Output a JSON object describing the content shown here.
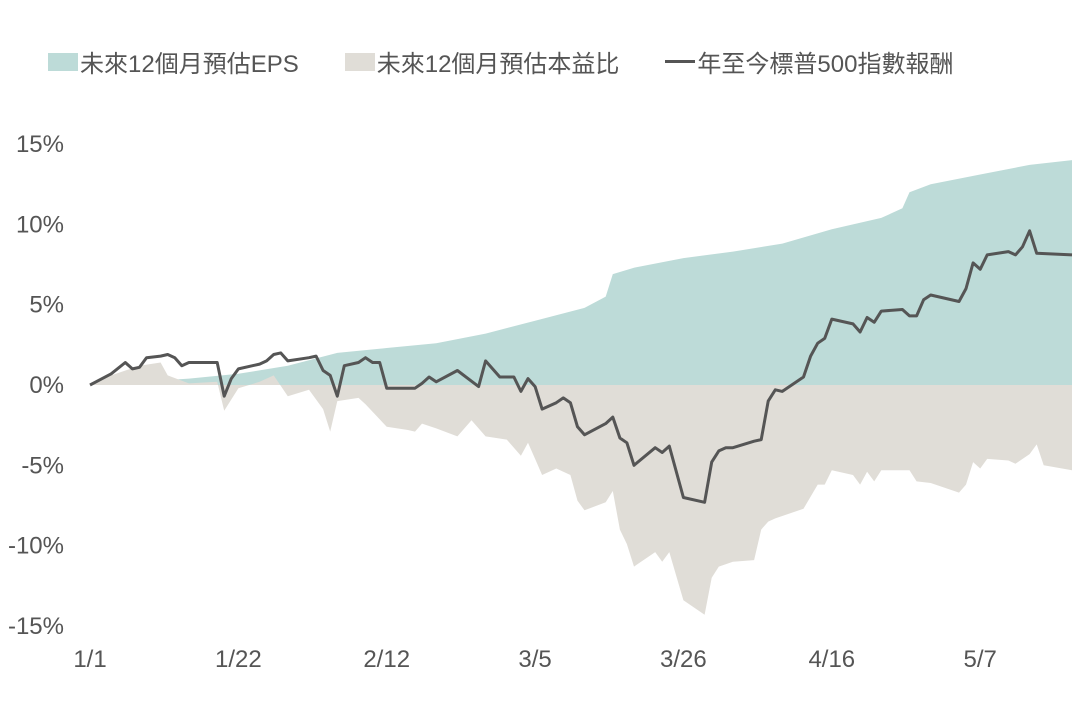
{
  "chart_data": {
    "type": "area",
    "title": "",
    "xlabel": "",
    "ylabel": "",
    "ylim": [
      -15,
      15
    ],
    "y_ticks": [
      15,
      10,
      5,
      0,
      -5,
      -10,
      -15
    ],
    "y_tick_labels": [
      "15%",
      "10%",
      "5%",
      "0%",
      "-5%",
      "-10%",
      "-15%"
    ],
    "x_ticks": [
      "1/1",
      "1/22",
      "2/12",
      "3/5",
      "3/26",
      "4/16",
      "5/7"
    ],
    "x_range": [
      "1/1",
      "5/20"
    ],
    "grid": false,
    "legend_position": "top",
    "colors": {
      "eps": "#bddbd8",
      "pe": "#e0ddd7",
      "sp500": "#555555"
    },
    "series": [
      {
        "name": "未來12個月預估EPS",
        "kind": "area",
        "points": [
          [
            "1/1",
            0
          ],
          [
            "1/8",
            0.2
          ],
          [
            "1/15",
            0.4
          ],
          [
            "1/22",
            0.7
          ],
          [
            "1/29",
            1.2
          ],
          [
            "2/5",
            2.0
          ],
          [
            "2/12",
            2.3
          ],
          [
            "2/19",
            2.6
          ],
          [
            "2/26",
            3.2
          ],
          [
            "3/5",
            4.0
          ],
          [
            "3/12",
            4.8
          ],
          [
            "3/15",
            5.5
          ],
          [
            "3/16",
            6.9
          ],
          [
            "3/19",
            7.3
          ],
          [
            "3/26",
            7.9
          ],
          [
            "4/2",
            8.3
          ],
          [
            "4/9",
            8.8
          ],
          [
            "4/16",
            9.7
          ],
          [
            "4/23",
            10.4
          ],
          [
            "4/26",
            11.0
          ],
          [
            "4/27",
            12.0
          ],
          [
            "4/30",
            12.5
          ],
          [
            "5/7",
            13.1
          ],
          [
            "5/14",
            13.7
          ],
          [
            "5/20",
            14.0
          ]
        ]
      },
      {
        "name": "未來12個月預估本益比",
        "kind": "area",
        "points": [
          [
            "1/1",
            0
          ],
          [
            "1/4",
            0.6
          ],
          [
            "1/8",
            1.2
          ],
          [
            "1/11",
            1.4
          ],
          [
            "1/12",
            0.6
          ],
          [
            "1/15",
            0.1
          ],
          [
            "1/19",
            0.2
          ],
          [
            "1/20",
            -1.6
          ],
          [
            "1/22",
            -0.2
          ],
          [
            "1/25",
            0.2
          ],
          [
            "1/27",
            0.6
          ],
          [
            "1/29",
            -0.7
          ],
          [
            "2/1",
            -0.3
          ],
          [
            "2/3",
            -1.5
          ],
          [
            "2/4",
            -2.9
          ],
          [
            "2/5",
            -1.0
          ],
          [
            "2/8",
            -0.8
          ],
          [
            "2/9",
            -1.2
          ],
          [
            "2/12",
            -2.6
          ],
          [
            "2/15",
            -2.8
          ],
          [
            "2/16",
            -2.9
          ],
          [
            "2/17",
            -2.4
          ],
          [
            "2/19",
            -2.7
          ],
          [
            "2/22",
            -3.2
          ],
          [
            "2/24",
            -2.2
          ],
          [
            "2/26",
            -3.2
          ],
          [
            "3/1",
            -3.4
          ],
          [
            "3/3",
            -4.4
          ],
          [
            "3/4",
            -3.6
          ],
          [
            "3/5",
            -4.6
          ],
          [
            "3/6",
            -5.6
          ],
          [
            "3/8",
            -5.2
          ],
          [
            "3/10",
            -5.6
          ],
          [
            "3/11",
            -7.2
          ],
          [
            "3/12",
            -7.8
          ],
          [
            "3/15",
            -7.3
          ],
          [
            "3/16",
            -6.6
          ],
          [
            "3/17",
            -9.0
          ],
          [
            "3/18",
            -9.9
          ],
          [
            "3/19",
            -11.3
          ],
          [
            "3/22",
            -10.4
          ],
          [
            "3/23",
            -11.0
          ],
          [
            "3/24",
            -10.4
          ],
          [
            "3/26",
            -13.4
          ],
          [
            "3/29",
            -14.3
          ],
          [
            "3/30",
            -12.0
          ],
          [
            "3/31",
            -11.3
          ],
          [
            "4/2",
            -11.0
          ],
          [
            "4/5",
            -10.9
          ],
          [
            "4/6",
            -9.0
          ],
          [
            "4/7",
            -8.5
          ],
          [
            "4/8",
            -8.3
          ],
          [
            "4/12",
            -7.7
          ],
          [
            "4/14",
            -6.2
          ],
          [
            "4/15",
            -6.2
          ],
          [
            "4/16",
            -5.3
          ],
          [
            "4/19",
            -5.6
          ],
          [
            "4/20",
            -6.2
          ],
          [
            "4/21",
            -5.4
          ],
          [
            "4/22",
            -6.0
          ],
          [
            "4/23",
            -5.3
          ],
          [
            "4/27",
            -5.3
          ],
          [
            "4/28",
            -6.0
          ],
          [
            "4/30",
            -6.1
          ],
          [
            "5/4",
            -6.7
          ],
          [
            "5/5",
            -6.2
          ],
          [
            "5/6",
            -4.8
          ],
          [
            "5/7",
            -5.2
          ],
          [
            "5/8",
            -4.6
          ],
          [
            "5/11",
            -4.7
          ],
          [
            "5/12",
            -4.9
          ],
          [
            "5/14",
            -4.3
          ],
          [
            "5/15",
            -3.7
          ],
          [
            "5/16",
            -5.0
          ],
          [
            "5/20",
            -5.3
          ]
        ]
      },
      {
        "name": "年至今標普500指數報酬",
        "kind": "line",
        "points": [
          [
            "1/1",
            0
          ],
          [
            "1/4",
            0.7
          ],
          [
            "1/6",
            1.4
          ],
          [
            "1/7",
            1.0
          ],
          [
            "1/8",
            1.1
          ],
          [
            "1/9",
            1.7
          ],
          [
            "1/11",
            1.8
          ],
          [
            "1/12",
            1.9
          ],
          [
            "1/13",
            1.7
          ],
          [
            "1/14",
            1.2
          ],
          [
            "1/15",
            1.4
          ],
          [
            "1/18",
            1.4
          ],
          [
            "1/19",
            1.4
          ],
          [
            "1/20",
            -0.7
          ],
          [
            "1/21",
            0.4
          ],
          [
            "1/22",
            1.0
          ],
          [
            "1/25",
            1.3
          ],
          [
            "1/26",
            1.5
          ],
          [
            "1/27",
            1.9
          ],
          [
            "1/28",
            2.0
          ],
          [
            "1/29",
            1.5
          ],
          [
            "2/1",
            1.7
          ],
          [
            "2/2",
            1.8
          ],
          [
            "2/3",
            0.9
          ],
          [
            "2/4",
            0.6
          ],
          [
            "2/5",
            -0.7
          ],
          [
            "2/6",
            1.2
          ],
          [
            "2/8",
            1.4
          ],
          [
            "2/9",
            1.7
          ],
          [
            "2/10",
            1.4
          ],
          [
            "2/11",
            1.4
          ],
          [
            "2/12",
            -0.2
          ],
          [
            "2/15",
            -0.2
          ],
          [
            "2/16",
            -0.2
          ],
          [
            "2/17",
            0.1
          ],
          [
            "2/18",
            0.5
          ],
          [
            "2/19",
            0.2
          ],
          [
            "2/22",
            0.9
          ],
          [
            "2/25",
            -0.1
          ],
          [
            "2/26",
            1.5
          ],
          [
            "2/28",
            0.5
          ],
          [
            "3/1",
            0.5
          ],
          [
            "3/2",
            0.5
          ],
          [
            "3/3",
            -0.4
          ],
          [
            "3/4",
            0.4
          ],
          [
            "3/5",
            -0.1
          ],
          [
            "3/6",
            -1.5
          ],
          [
            "3/8",
            -1.1
          ],
          [
            "3/9",
            -0.8
          ],
          [
            "3/10",
            -1.1
          ],
          [
            "3/11",
            -2.6
          ],
          [
            "3/12",
            -3.1
          ],
          [
            "3/15",
            -2.4
          ],
          [
            "3/16",
            -2.0
          ],
          [
            "3/17",
            -3.3
          ],
          [
            "3/18",
            -3.6
          ],
          [
            "3/19",
            -5.0
          ],
          [
            "3/22",
            -3.9
          ],
          [
            "3/23",
            -4.2
          ],
          [
            "3/24",
            -3.8
          ],
          [
            "3/26",
            -7.0
          ],
          [
            "3/29",
            -7.3
          ],
          [
            "3/30",
            -4.8
          ],
          [
            "3/31",
            -4.1
          ],
          [
            "4/1",
            -3.9
          ],
          [
            "4/2",
            -3.9
          ],
          [
            "4/5",
            -3.5
          ],
          [
            "4/6",
            -3.4
          ],
          [
            "4/7",
            -1.0
          ],
          [
            "4/8",
            -0.3
          ],
          [
            "4/9",
            -0.4
          ],
          [
            "4/12",
            0.5
          ],
          [
            "4/13",
            1.8
          ],
          [
            "4/14",
            2.6
          ],
          [
            "4/15",
            2.9
          ],
          [
            "4/16",
            4.1
          ],
          [
            "4/19",
            3.8
          ],
          [
            "4/20",
            3.3
          ],
          [
            "4/21",
            4.2
          ],
          [
            "4/22",
            3.9
          ],
          [
            "4/23",
            4.6
          ],
          [
            "4/26",
            4.7
          ],
          [
            "4/27",
            4.3
          ],
          [
            "4/28",
            4.3
          ],
          [
            "4/29",
            5.3
          ],
          [
            "4/30",
            5.6
          ],
          [
            "5/4",
            5.2
          ],
          [
            "5/5",
            6.0
          ],
          [
            "5/6",
            7.6
          ],
          [
            "5/7",
            7.2
          ],
          [
            "5/8",
            8.1
          ],
          [
            "5/11",
            8.3
          ],
          [
            "5/12",
            8.1
          ],
          [
            "5/13",
            8.6
          ],
          [
            "5/14",
            9.6
          ],
          [
            "5/15",
            8.2
          ],
          [
            "5/20",
            8.1
          ]
        ]
      }
    ]
  }
}
